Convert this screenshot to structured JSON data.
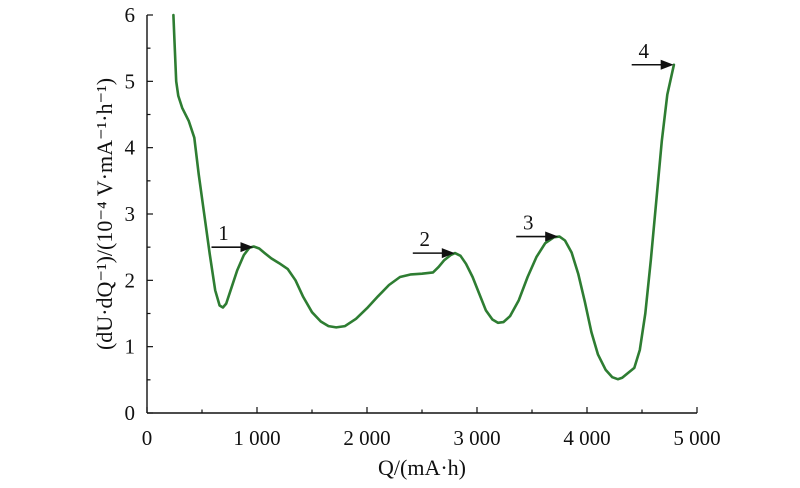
{
  "chart_data": {
    "type": "line",
    "xlabel": "Q/(mA·h)",
    "ylabel": "(dU·dQ⁻¹)/(10⁻⁴ V·mA⁻¹·h⁻¹)",
    "xlim": [
      0,
      5000
    ],
    "ylim": [
      0,
      6
    ],
    "xticks": [
      0,
      1000,
      2000,
      3000,
      4000,
      5000
    ],
    "xtick_labels": [
      "0",
      "1 000",
      "2 000",
      "3 000",
      "4 000",
      "5 000"
    ],
    "yticks": [
      0,
      1,
      2,
      3,
      4,
      5,
      6
    ],
    "ytick_labels": [
      "0",
      "1",
      "2",
      "3",
      "4",
      "5",
      "6"
    ],
    "grid": false,
    "series": [
      {
        "color": "#2e7d32",
        "points": [
          [
            240,
            6.0
          ],
          [
            250,
            5.6
          ],
          [
            265,
            5.0
          ],
          [
            285,
            4.78
          ],
          [
            320,
            4.6
          ],
          [
            380,
            4.4
          ],
          [
            430,
            4.15
          ],
          [
            470,
            3.6
          ],
          [
            520,
            3.0
          ],
          [
            570,
            2.4
          ],
          [
            620,
            1.85
          ],
          [
            660,
            1.62
          ],
          [
            690,
            1.59
          ],
          [
            720,
            1.65
          ],
          [
            760,
            1.85
          ],
          [
            820,
            2.15
          ],
          [
            880,
            2.38
          ],
          [
            930,
            2.49
          ],
          [
            970,
            2.51
          ],
          [
            1020,
            2.48
          ],
          [
            1070,
            2.41
          ],
          [
            1130,
            2.33
          ],
          [
            1200,
            2.26
          ],
          [
            1280,
            2.17
          ],
          [
            1350,
            2.0
          ],
          [
            1420,
            1.75
          ],
          [
            1500,
            1.52
          ],
          [
            1580,
            1.38
          ],
          [
            1650,
            1.31
          ],
          [
            1720,
            1.29
          ],
          [
            1800,
            1.31
          ],
          [
            1900,
            1.42
          ],
          [
            2000,
            1.58
          ],
          [
            2100,
            1.76
          ],
          [
            2200,
            1.93
          ],
          [
            2300,
            2.05
          ],
          [
            2400,
            2.09
          ],
          [
            2500,
            2.1
          ],
          [
            2600,
            2.12
          ],
          [
            2650,
            2.2
          ],
          [
            2700,
            2.3
          ],
          [
            2760,
            2.38
          ],
          [
            2800,
            2.41
          ],
          [
            2850,
            2.37
          ],
          [
            2900,
            2.25
          ],
          [
            2960,
            2.05
          ],
          [
            3020,
            1.8
          ],
          [
            3080,
            1.55
          ],
          [
            3140,
            1.41
          ],
          [
            3190,
            1.36
          ],
          [
            3240,
            1.37
          ],
          [
            3300,
            1.46
          ],
          [
            3380,
            1.7
          ],
          [
            3460,
            2.05
          ],
          [
            3540,
            2.35
          ],
          [
            3620,
            2.56
          ],
          [
            3700,
            2.65
          ],
          [
            3750,
            2.66
          ],
          [
            3800,
            2.6
          ],
          [
            3860,
            2.42
          ],
          [
            3920,
            2.1
          ],
          [
            3980,
            1.68
          ],
          [
            4040,
            1.22
          ],
          [
            4100,
            0.88
          ],
          [
            4170,
            0.65
          ],
          [
            4230,
            0.54
          ],
          [
            4280,
            0.51
          ],
          [
            4320,
            0.53
          ],
          [
            4370,
            0.6
          ],
          [
            4430,
            0.68
          ],
          [
            4480,
            0.95
          ],
          [
            4530,
            1.5
          ],
          [
            4580,
            2.3
          ],
          [
            4630,
            3.2
          ],
          [
            4680,
            4.1
          ],
          [
            4730,
            4.8
          ],
          [
            4790,
            5.25
          ]
        ]
      }
    ],
    "annotations": [
      {
        "label": "1",
        "x": 950,
        "y": 2.5
      },
      {
        "label": "2",
        "x": 2780,
        "y": 2.41
      },
      {
        "label": "3",
        "x": 3720,
        "y": 2.66
      },
      {
        "label": "4",
        "x": 4770,
        "y": 5.25
      }
    ]
  }
}
